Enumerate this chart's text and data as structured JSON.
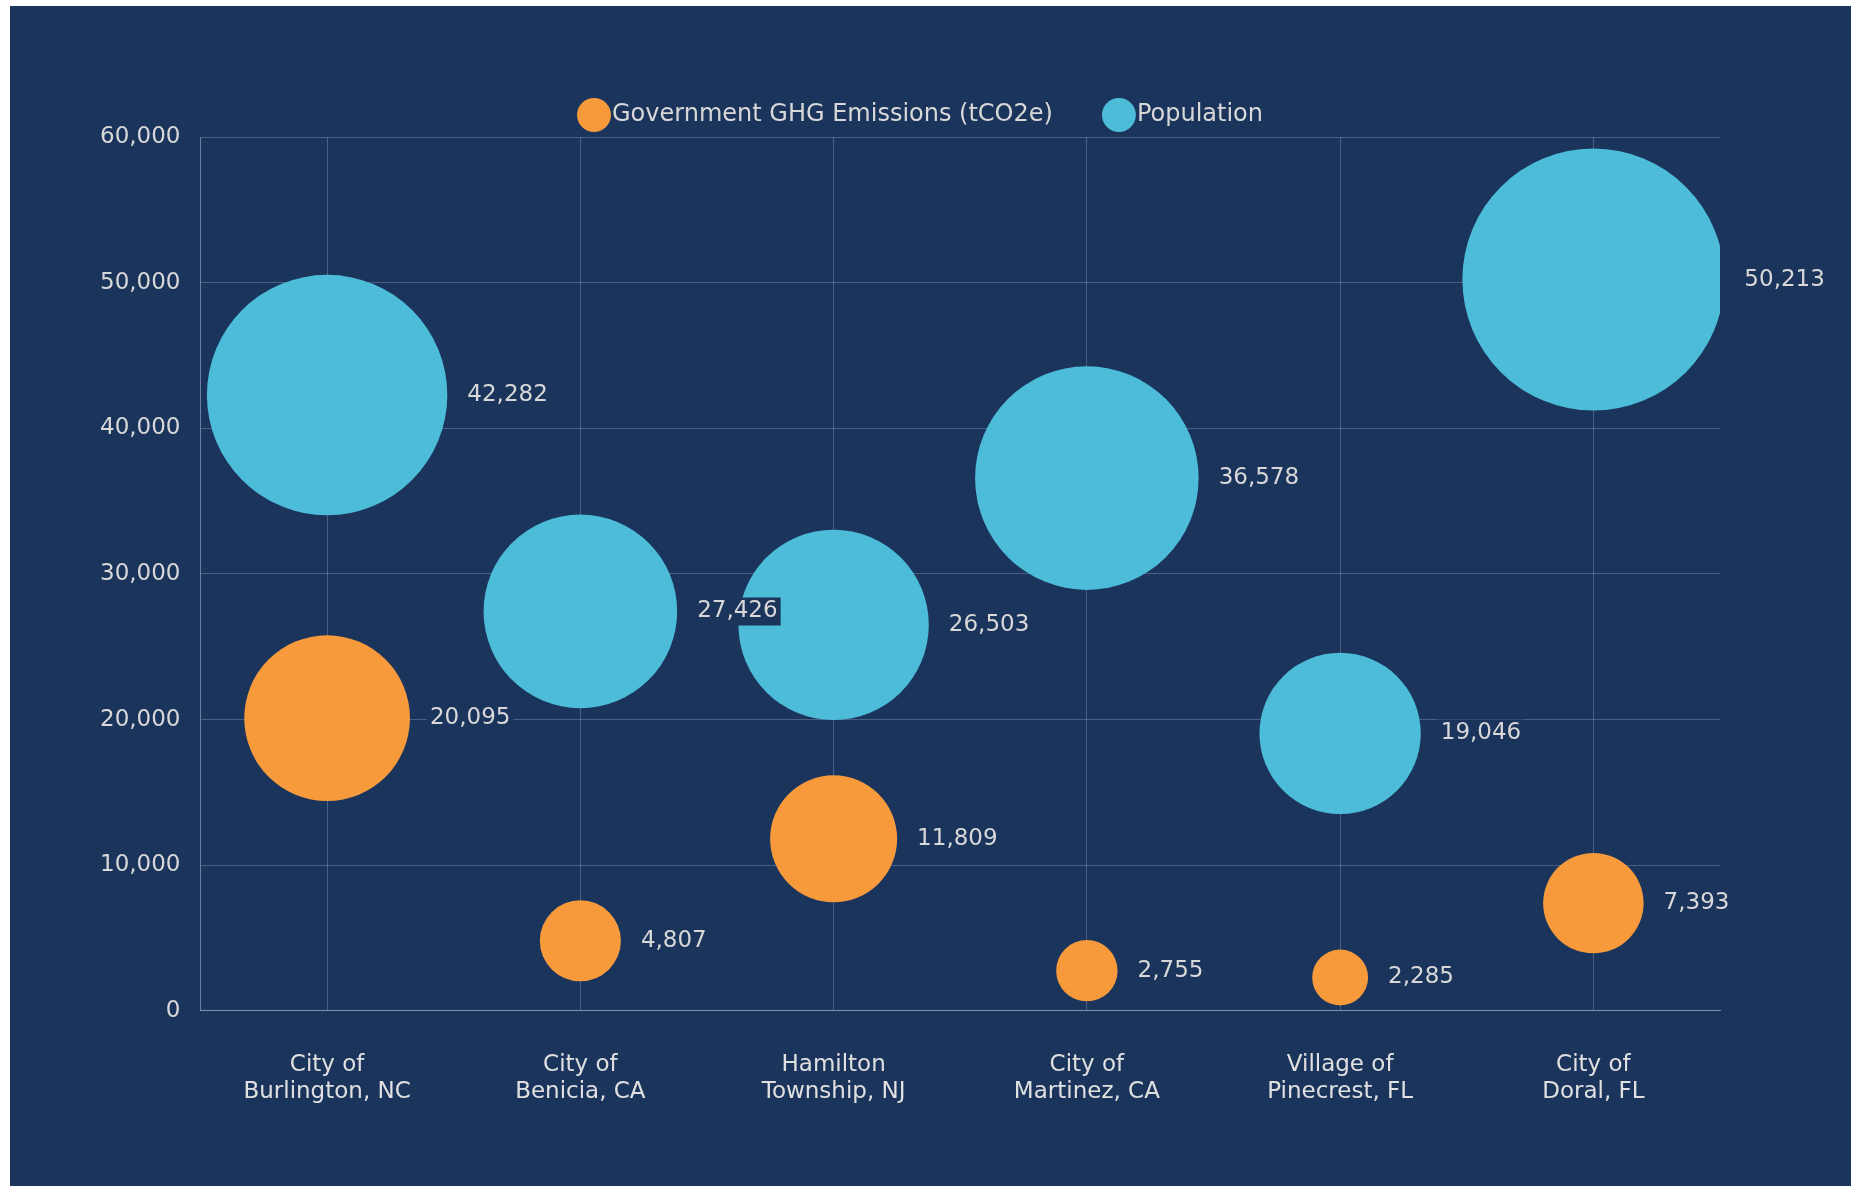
{
  "chart_data": {
    "type": "bubble",
    "categories": [
      "City of Burlington, NC",
      "City of Benicia, CA",
      "Hamilton Township, NJ",
      "City of Martinez, CA",
      "Village of Pinecrest, FL",
      "City of Doral, FL"
    ],
    "series": [
      {
        "name": "Government GHG Emissions (tCO2e)",
        "color": "#f79a3c",
        "values": [
          20095,
          4807,
          11809,
          2755,
          2285,
          7393
        ],
        "value_labels": [
          "20,095",
          "4,807",
          "11,809",
          "2,755",
          "2,285",
          "7,393"
        ],
        "sizes": [
          0.4,
          0.0957,
          0.235,
          0.0549,
          0.0455,
          0.147
        ]
      },
      {
        "name": "Population",
        "color": "#4dbcd9",
        "values": [
          42282,
          27426,
          26503,
          36578,
          19046,
          50213
        ],
        "value_labels": [
          "42,282",
          "27,426",
          "26,503",
          "36,578",
          "19,046",
          "50,213"
        ],
        "sizes": [
          0.842,
          0.546,
          0.528,
          0.728,
          0.379,
          1
        ]
      }
    ],
    "ylim": [
      0,
      60000
    ],
    "yticks": [
      0,
      {
        "value": 10000,
        "label": "10,000"
      },
      {
        "value": 20000,
        "label": "20,000"
      },
      {
        "value": 30000,
        "label": "30,000"
      },
      {
        "value": 40000,
        "label": "40,000"
      },
      {
        "value": 50000,
        "label": "50,000"
      },
      {
        "value": 60000,
        "label": "60,000"
      }
    ],
    "grid": true,
    "legend": "top"
  }
}
